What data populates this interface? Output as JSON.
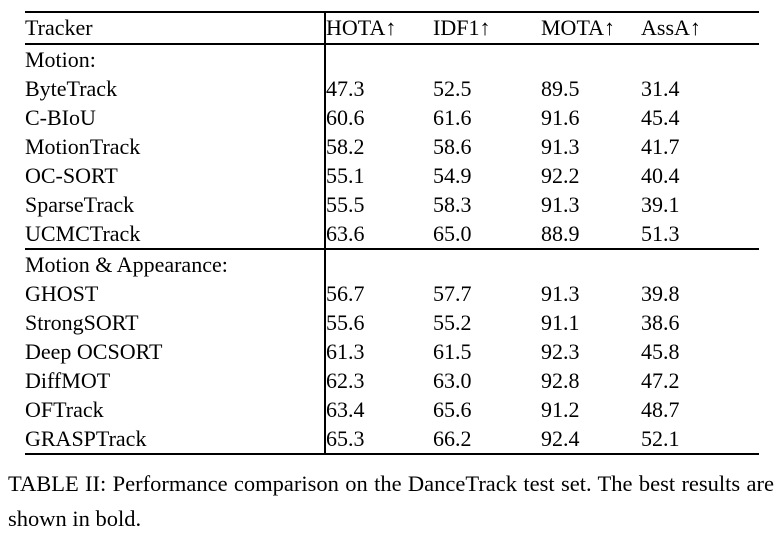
{
  "chart_data": {
    "type": "table",
    "columns": [
      "Tracker",
      "HOTA↑",
      "IDF1↑",
      "MOTA↑",
      "AssA↑"
    ],
    "sections": [
      {
        "label": "Motion:",
        "rows": [
          {
            "name": "ByteTrack",
            "name_bold": false,
            "values": [
              "47.3",
              "52.5",
              "89.5",
              "31.4"
            ],
            "bold": [
              false,
              false,
              false,
              false
            ]
          },
          {
            "name": "C-BIoU",
            "name_bold": false,
            "values": [
              "60.6",
              "61.6",
              "91.6",
              "45.4"
            ],
            "bold": [
              false,
              false,
              false,
              false
            ]
          },
          {
            "name": "MotionTrack",
            "name_bold": false,
            "values": [
              "58.2",
              "58.6",
              "91.3",
              "41.7"
            ],
            "bold": [
              false,
              false,
              false,
              false
            ]
          },
          {
            "name": "OC-SORT",
            "name_bold": false,
            "values": [
              "55.1",
              "54.9",
              "92.2",
              "40.4"
            ],
            "bold": [
              false,
              false,
              false,
              false
            ]
          },
          {
            "name": "SparseTrack",
            "name_bold": false,
            "values": [
              "55.5",
              "58.3",
              "91.3",
              "39.1"
            ],
            "bold": [
              false,
              false,
              false,
              false
            ]
          },
          {
            "name": "UCMCTrack",
            "name_bold": false,
            "values": [
              "63.6",
              "65.0",
              "88.9",
              "51.3"
            ],
            "bold": [
              false,
              false,
              false,
              false
            ]
          }
        ]
      },
      {
        "label": "Motion & Appearance:",
        "rows": [
          {
            "name": "GHOST",
            "name_bold": false,
            "values": [
              "56.7",
              "57.7",
              "91.3",
              "39.8"
            ],
            "bold": [
              false,
              false,
              false,
              false
            ]
          },
          {
            "name": "StrongSORT",
            "name_bold": false,
            "values": [
              "55.6",
              "55.2",
              "91.1",
              "38.6"
            ],
            "bold": [
              false,
              false,
              false,
              false
            ]
          },
          {
            "name": "Deep OCSORT",
            "name_bold": false,
            "values": [
              "61.3",
              "61.5",
              "92.3",
              "45.8"
            ],
            "bold": [
              false,
              false,
              false,
              false
            ]
          },
          {
            "name": "DiffMOT",
            "name_bold": false,
            "values": [
              "62.3",
              "63.0",
              "92.8",
              "47.2"
            ],
            "bold": [
              false,
              false,
              true,
              false
            ]
          },
          {
            "name": "OFTrack",
            "name_bold": false,
            "values": [
              "63.4",
              "65.6",
              "91.2",
              "48.7"
            ],
            "bold": [
              false,
              false,
              false,
              false
            ]
          },
          {
            "name": "GRASPTrack",
            "name_bold": true,
            "values": [
              "65.3",
              "66.2",
              "92.4",
              "52.1"
            ],
            "bold": [
              true,
              true,
              false,
              true
            ]
          }
        ]
      }
    ]
  },
  "caption": "TABLE II: Performance comparison on the DanceTrack test set. The best results are shown in bold."
}
